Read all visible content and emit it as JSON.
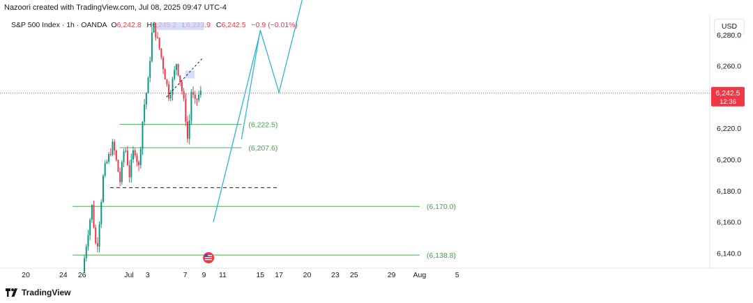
{
  "header": {
    "creator_line": "Nazoori created with TradingView.com, Jul 08, 2025 09:47 UTC-4"
  },
  "legend": {
    "symbol": "S&P 500 Index · 1h · OANDA",
    "open_label": "O",
    "open": "6,242.8",
    "high_label": "H",
    "high": "6,245.2",
    "low_label": "L",
    "low": "6,233.9",
    "close_label": "C",
    "close": "6,242.5",
    "change": "−0.9 (−0.01%)"
  },
  "currency": "USD",
  "price_badge": {
    "price": "6,242.5",
    "countdown": "12:36"
  },
  "brand": {
    "name": "TradingView"
  },
  "colors": {
    "up": "#089981",
    "down": "#f23645",
    "projection": "#29b6d8",
    "level": "#4caf50",
    "level_text": "#43a047"
  },
  "chart_data": {
    "type": "candlestick",
    "ylim": [
      6125,
      6300
    ],
    "y_ticks": [
      6140,
      6160,
      6180,
      6200,
      6220,
      6240,
      6260,
      6280
    ],
    "y_tick_labels": [
      "6,140.0",
      "6,160.0",
      "6,180.0",
      "6,200.0",
      "6,220.0",
      "6,240.0",
      "6,260.0",
      "6,280.0"
    ],
    "x_tick_labels": [
      "20",
      "24",
      "26",
      "Jul",
      "3",
      "7",
      "9",
      "11",
      "15",
      "17",
      "20",
      "23",
      "25",
      "29",
      "Aug",
      "5"
    ],
    "x_tick_dates": [
      "2025-06-20",
      "2025-06-24",
      "2025-06-26",
      "2025-07-01",
      "2025-07-03",
      "2025-07-07",
      "2025-07-09",
      "2025-07-11",
      "2025-07-15",
      "2025-07-17",
      "2025-07-20",
      "2025-07-23",
      "2025-07-25",
      "2025-07-29",
      "2025-08-01",
      "2025-08-05"
    ],
    "last_price": 6242.5,
    "candle_range": {
      "start": "2025-06-26",
      "end": "2025-07-08"
    },
    "price_path": [
      [
        "2025-06-26",
        6128
      ],
      [
        "2025-06-26",
        6150
      ],
      [
        "2025-06-27",
        6170
      ],
      [
        "2025-06-27",
        6140
      ],
      [
        "2025-06-28",
        6192
      ],
      [
        "2025-06-29",
        6210
      ],
      [
        "2025-06-30",
        6186
      ],
      [
        "2025-06-30",
        6210
      ],
      [
        "2025-07-01",
        6190
      ],
      [
        "2025-07-01",
        6208
      ],
      [
        "2025-07-02",
        6195
      ],
      [
        "2025-07-02",
        6232
      ],
      [
        "2025-07-03",
        6250
      ],
      [
        "2025-07-03",
        6288
      ],
      [
        "2025-07-04",
        6270
      ],
      [
        "2025-07-05",
        6240
      ],
      [
        "2025-07-06",
        6262
      ],
      [
        "2025-07-06",
        6248
      ],
      [
        "2025-07-07",
        6232
      ],
      [
        "2025-07-07",
        6210
      ],
      [
        "2025-07-07",
        6244
      ],
      [
        "2025-07-08",
        6236
      ],
      [
        "2025-07-08",
        6242.5
      ]
    ],
    "levels": [
      {
        "label": "(6,222.5)",
        "value": 6222.5,
        "from": "2025-06-30",
        "to": "2025-07-13"
      },
      {
        "label": "(6,207.6)",
        "value": 6207.6,
        "from": "2025-06-30",
        "to": "2025-07-13"
      },
      {
        "label": "(6,170.0)",
        "value": 6170.0,
        "from": "2025-06-25",
        "to": "2025-08-01"
      },
      {
        "label": "(6,138.8)",
        "value": 6138.8,
        "from": "2025-06-25",
        "to": "2025-08-01"
      }
    ],
    "dashed_level": {
      "value": 6182,
      "from": "2025-06-29",
      "to": "2025-07-17"
    },
    "resistance_zones": [
      {
        "from": "2025-07-04",
        "to": "2025-07-09",
        "y_low": 6283,
        "y_high": 6288
      },
      {
        "from": "2025-07-07",
        "to": "2025-07-08",
        "y_low": 6252,
        "y_high": 6257
      }
    ],
    "projection_line_1": [
      [
        "2025-07-10",
        6160
      ],
      [
        "2025-07-15",
        6282
      ]
    ],
    "projection_line_2": [
      [
        "2025-07-13",
        6213
      ],
      [
        "2025-07-15",
        6283
      ],
      [
        "2025-07-17",
        6243
      ],
      [
        "2025-07-20",
        6315
      ]
    ]
  }
}
